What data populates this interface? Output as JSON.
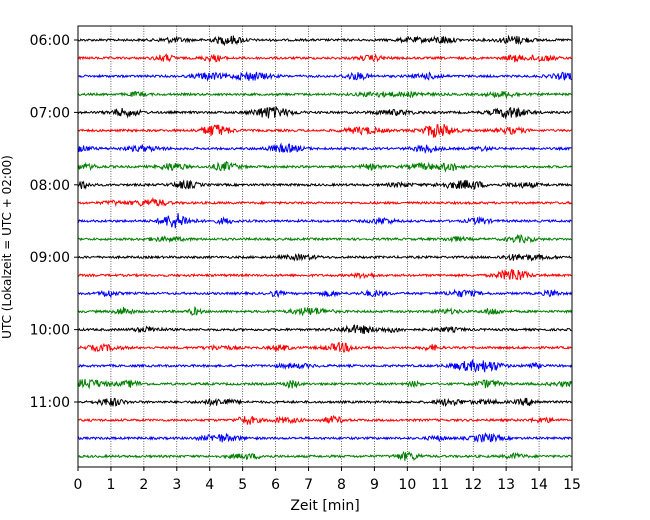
{
  "chart_data": {
    "type": "line",
    "title": "",
    "xlabel": "Zeit  [min]",
    "ylabel": "UTC (Lokalzeit = UTC + 02:00)",
    "xlim": [
      0,
      15
    ],
    "x_ticks": [
      0,
      1,
      2,
      3,
      4,
      5,
      6,
      7,
      8,
      9,
      10,
      11,
      12,
      13,
      14,
      15
    ],
    "y_ticks": [
      "06:00",
      "07:00",
      "08:00",
      "09:00",
      "10:00",
      "11:00"
    ],
    "trace_interval_min": 15,
    "first_trace": "06:00",
    "trace_count": 24,
    "grid_x": true,
    "color_cycle": [
      "#000000",
      "#ff0000",
      "#0000ff",
      "#008000"
    ],
    "series_kind": "seismogram helicorder traces"
  }
}
